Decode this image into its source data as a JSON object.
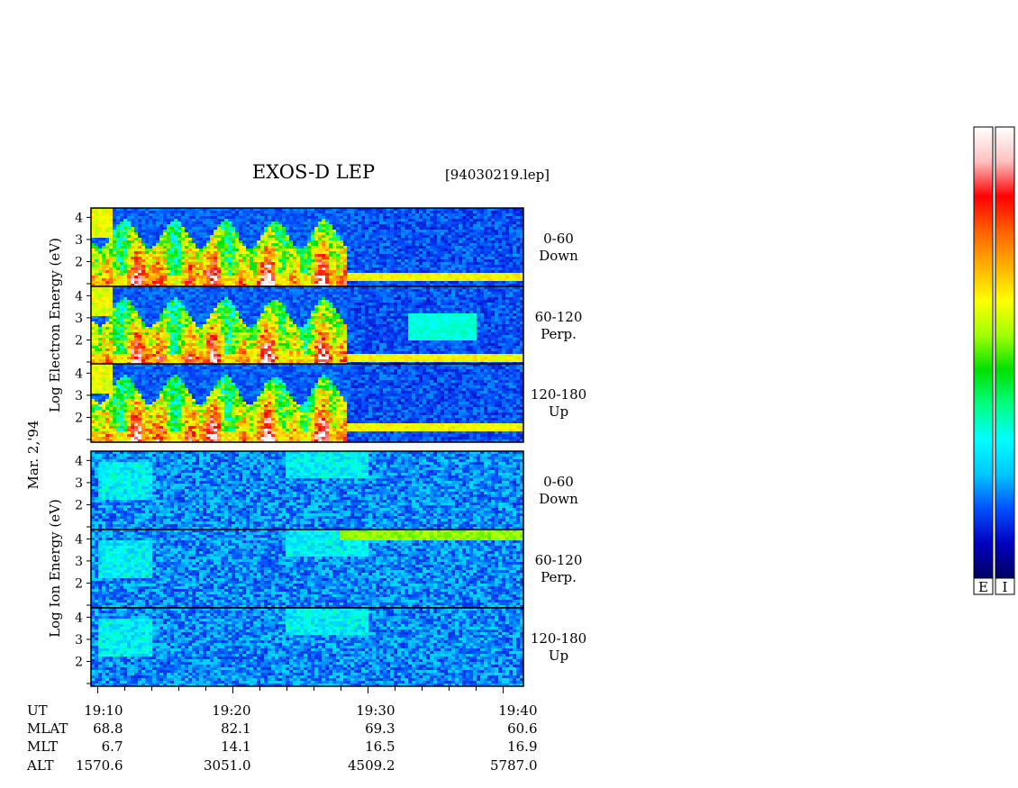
{
  "title": "EXOS-D LEP",
  "filename": "[94030219.lep]",
  "date_label": "Mar. 2,'94",
  "electron_ylabel": [
    "Log",
    "Electron",
    "Energy",
    "(eV)"
  ],
  "ion_ylabel": [
    "Log",
    "Ion",
    "Energy",
    "(eV)"
  ],
  "colorbar_labels": [
    "E",
    "I"
  ],
  "colors": {
    "colorbar_stops": [
      "#000060",
      "#0000c0",
      "#0050ff",
      "#00c8ff",
      "#00ffff",
      "#00ff80",
      "#00e000",
      "#a0ff00",
      "#ffff00",
      "#ffb000",
      "#ff6000",
      "#ff0000",
      "#ffc0c0",
      "#ffffff"
    ],
    "axis": "#000000"
  },
  "orbit_table": {
    "row_labels": [
      "UT",
      "MLAT",
      "MLT",
      "ALT"
    ],
    "columns": [
      {
        "UT": "19:10",
        "MLAT": "68.8",
        "MLT": "6.7",
        "ALT": "1570.6"
      },
      {
        "UT": "19:20",
        "MLAT": "82.1",
        "MLT": "14.1",
        "ALT": "3051.0"
      },
      {
        "UT": "19:30",
        "MLAT": "69.3",
        "MLT": "16.5",
        "ALT": "4509.2"
      },
      {
        "UT": "19:40",
        "MLAT": "60.6",
        "MLT": "16.9",
        "ALT": "5787.0"
      }
    ]
  },
  "chart_data": {
    "type": "heatmap",
    "x_unit": "UT",
    "x_range": [
      "19:09:30",
      "19:41:30"
    ],
    "x_ticks": [
      "19:10",
      "19:20",
      "19:30",
      "19:40"
    ],
    "y_scale": "log",
    "y_ticks": [
      2,
      3,
      4
    ],
    "panels": [
      {
        "species": "Electron",
        "pitch_angle": "0-60",
        "direction": "Down",
        "features": {
          "intense_bursts": [
            "19:11",
            "19:28:30"
          ],
          "line_after": "19:28:30",
          "line_level": 1.4
        }
      },
      {
        "species": "Electron",
        "pitch_angle": "60-120",
        "direction": "Perp.",
        "features": {
          "intense_bursts": [
            "19:11",
            "19:28:30"
          ],
          "line_after": "19:28:30",
          "line_level": 1.3,
          "patch": [
            "19:33",
            "19:38"
          ]
        }
      },
      {
        "species": "Electron",
        "pitch_angle": "120-180",
        "direction": "Up",
        "features": {
          "intense_bursts": [
            "19:11",
            "19:28:30"
          ],
          "line_after": "19:28:30",
          "line_level": 1.6
        }
      },
      {
        "species": "Ion",
        "pitch_angle": "0-60",
        "direction": "Down",
        "features": {
          "weak_emission": [
            "19:10",
            "19:30"
          ]
        }
      },
      {
        "species": "Ion",
        "pitch_angle": "60-120",
        "direction": "Perp.",
        "features": {
          "weak_emission": [
            "19:10",
            "19:41"
          ],
          "top_band_after": "19:28"
        }
      },
      {
        "species": "Ion",
        "pitch_angle": "120-180",
        "direction": "Up",
        "features": {
          "weak_emission": [
            "19:10",
            "19:41"
          ]
        }
      }
    ]
  }
}
